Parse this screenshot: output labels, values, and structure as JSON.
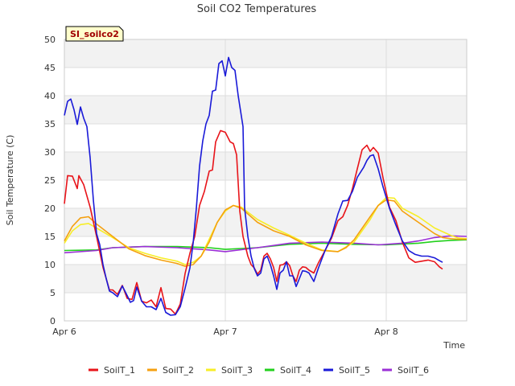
{
  "chart_data": {
    "type": "line",
    "title": "Soil CO2 Temperatures",
    "site_tag": "SI_soilco2",
    "xlabel": "Time",
    "ylabel": "Soil Temperature (C)",
    "x_unit": "days since Apr 6 00:00",
    "xlim": [
      0,
      2.5
    ],
    "ylim": [
      0,
      50
    ],
    "y_ticks": [
      0,
      5,
      10,
      15,
      20,
      25,
      30,
      35,
      40,
      45,
      50
    ],
    "x_ticks": [
      {
        "value": 0,
        "label": "Apr 6"
      },
      {
        "value": 1,
        "label": "Apr 7"
      },
      {
        "value": 2,
        "label": "Apr 8"
      }
    ],
    "grid": true,
    "legend": "bottom",
    "colors": {
      "SoilT_1": "#e8141a",
      "SoilT_2": "#f5a00f",
      "SoilT_3": "#f7ee27",
      "SoilT_4": "#22d01c",
      "SoilT_5": "#1a1ad8",
      "SoilT_6": "#9b2fd6"
    },
    "series": [
      {
        "name": "SoilT_1",
        "points": [
          [
            0,
            20.8
          ],
          [
            0.02,
            25.8
          ],
          [
            0.05,
            25.7
          ],
          [
            0.08,
            23.5
          ],
          [
            0.09,
            25.8
          ],
          [
            0.12,
            24.2
          ],
          [
            0.16,
            20.2
          ],
          [
            0.2,
            15
          ],
          [
            0.24,
            9.5
          ],
          [
            0.28,
            5.5
          ],
          [
            0.3,
            5.5
          ],
          [
            0.33,
            4.7
          ],
          [
            0.36,
            6.3
          ],
          [
            0.39,
            4
          ],
          [
            0.42,
            3.8
          ],
          [
            0.45,
            6.8
          ],
          [
            0.48,
            3.5
          ],
          [
            0.51,
            3.2
          ],
          [
            0.54,
            3.7
          ],
          [
            0.57,
            2.5
          ],
          [
            0.6,
            5.9
          ],
          [
            0.63,
            2.2
          ],
          [
            0.66,
            2.1
          ],
          [
            0.69,
            1.2
          ],
          [
            0.72,
            3
          ],
          [
            0.75,
            8.4
          ],
          [
            0.78,
            12
          ],
          [
            0.81,
            15
          ],
          [
            0.84,
            20.5
          ],
          [
            0.87,
            23
          ],
          [
            0.9,
            26.6
          ],
          [
            0.92,
            26.8
          ],
          [
            0.94,
            31.8
          ],
          [
            0.97,
            33.8
          ],
          [
            1.0,
            33.5
          ],
          [
            1.03,
            31.8
          ],
          [
            1.05,
            31.5
          ],
          [
            1.07,
            29.5
          ],
          [
            1.09,
            19.5
          ],
          [
            1.11,
            15
          ],
          [
            1.14,
            11.5
          ],
          [
            1.16,
            10
          ],
          [
            1.18,
            9.4
          ],
          [
            1.2,
            8.3
          ],
          [
            1.22,
            9
          ],
          [
            1.24,
            11.5
          ],
          [
            1.26,
            12
          ],
          [
            1.28,
            11
          ],
          [
            1.3,
            9.5
          ],
          [
            1.32,
            7
          ],
          [
            1.34,
            9.9
          ],
          [
            1.36,
            10
          ],
          [
            1.38,
            10.5
          ],
          [
            1.4,
            9.8
          ],
          [
            1.42,
            8
          ],
          [
            1.44,
            7
          ],
          [
            1.46,
            9
          ],
          [
            1.48,
            9.6
          ],
          [
            1.5,
            9.5
          ],
          [
            1.52,
            9
          ],
          [
            1.55,
            8.5
          ],
          [
            1.58,
            10.4
          ],
          [
            1.62,
            12.5
          ],
          [
            1.66,
            14.7
          ],
          [
            1.7,
            17.8
          ],
          [
            1.73,
            18.5
          ],
          [
            1.76,
            20.5
          ],
          [
            1.79,
            23.5
          ],
          [
            1.82,
            27
          ],
          [
            1.85,
            30.4
          ],
          [
            1.88,
            31.2
          ],
          [
            1.9,
            30.1
          ],
          [
            1.92,
            30.8
          ],
          [
            1.95,
            29.8
          ],
          [
            1.98,
            25.4
          ],
          [
            2.02,
            20.2
          ],
          [
            2.06,
            17.8
          ],
          [
            2.1,
            14
          ],
          [
            2.14,
            11.2
          ],
          [
            2.18,
            10.4
          ],
          [
            2.22,
            10.6
          ],
          [
            2.26,
            10.8
          ],
          [
            2.3,
            10.5
          ],
          [
            2.33,
            9.6
          ],
          [
            2.35,
            9.2
          ]
        ]
      },
      {
        "name": "SoilT_2",
        "points": [
          [
            0,
            14.2
          ],
          [
            0.05,
            16.8
          ],
          [
            0.1,
            18.3
          ],
          [
            0.15,
            18.5
          ],
          [
            0.2,
            17.2
          ],
          [
            0.3,
            15
          ],
          [
            0.4,
            12.8
          ],
          [
            0.5,
            11.6
          ],
          [
            0.6,
            10.8
          ],
          [
            0.7,
            10.2
          ],
          [
            0.75,
            9.7
          ],
          [
            0.8,
            10
          ],
          [
            0.85,
            11.5
          ],
          [
            0.9,
            14
          ],
          [
            0.95,
            17.5
          ],
          [
            1.0,
            19.7
          ],
          [
            1.05,
            20.5
          ],
          [
            1.1,
            20
          ],
          [
            1.2,
            17.5
          ],
          [
            1.3,
            16
          ],
          [
            1.4,
            15
          ],
          [
            1.5,
            13.5
          ],
          [
            1.6,
            12.5
          ],
          [
            1.7,
            12.3
          ],
          [
            1.75,
            13
          ],
          [
            1.8,
            14.4
          ],
          [
            1.9,
            18.5
          ],
          [
            1.95,
            20.5
          ],
          [
            2.0,
            21.5
          ],
          [
            2.05,
            21.3
          ],
          [
            2.1,
            19.5
          ],
          [
            2.2,
            17.5
          ],
          [
            2.3,
            15.5
          ],
          [
            2.35,
            14.8
          ],
          [
            2.4,
            14.6
          ],
          [
            2.45,
            14.5
          ],
          [
            2.5,
            14.5
          ]
        ]
      },
      {
        "name": "SoilT_3",
        "points": [
          [
            0,
            13.8
          ],
          [
            0.05,
            16
          ],
          [
            0.1,
            17.1
          ],
          [
            0.15,
            17.3
          ],
          [
            0.2,
            16.5
          ],
          [
            0.3,
            14.8
          ],
          [
            0.4,
            13
          ],
          [
            0.5,
            12
          ],
          [
            0.6,
            11.2
          ],
          [
            0.7,
            10.6
          ],
          [
            0.75,
            10
          ],
          [
            0.8,
            10.4
          ],
          [
            0.85,
            11.5
          ],
          [
            0.9,
            14.5
          ],
          [
            0.95,
            17.5
          ],
          [
            1.0,
            19.5
          ],
          [
            1.05,
            20.5
          ],
          [
            1.1,
            20.2
          ],
          [
            1.2,
            18
          ],
          [
            1.3,
            16.5
          ],
          [
            1.4,
            15.2
          ],
          [
            1.5,
            13.8
          ],
          [
            1.6,
            12.6
          ],
          [
            1.7,
            12.3
          ],
          [
            1.8,
            14
          ],
          [
            1.9,
            18
          ],
          [
            1.95,
            20.5
          ],
          [
            2.0,
            21.9
          ],
          [
            2.05,
            21.8
          ],
          [
            2.1,
            20
          ],
          [
            2.2,
            18.5
          ],
          [
            2.3,
            16.5
          ],
          [
            2.4,
            15.2
          ],
          [
            2.45,
            14.7
          ],
          [
            2.5,
            14.6
          ]
        ]
      },
      {
        "name": "SoilT_4",
        "points": [
          [
            0,
            12.5
          ],
          [
            0.2,
            12.6
          ],
          [
            0.3,
            13
          ],
          [
            0.5,
            13.2
          ],
          [
            0.7,
            13.2
          ],
          [
            0.9,
            13
          ],
          [
            1.0,
            12.7
          ],
          [
            1.2,
            13
          ],
          [
            1.4,
            13.6
          ],
          [
            1.6,
            13.8
          ],
          [
            1.8,
            13.6
          ],
          [
            2.0,
            13.5
          ],
          [
            2.2,
            13.8
          ],
          [
            2.3,
            14.1
          ],
          [
            2.4,
            14.3
          ],
          [
            2.5,
            14.4
          ]
        ]
      },
      {
        "name": "SoilT_5",
        "points": [
          [
            0,
            36.5
          ],
          [
            0.02,
            39
          ],
          [
            0.04,
            39.4
          ],
          [
            0.06,
            37.5
          ],
          [
            0.08,
            34.9
          ],
          [
            0.1,
            38
          ],
          [
            0.12,
            36
          ],
          [
            0.14,
            34.5
          ],
          [
            0.16,
            29
          ],
          [
            0.18,
            21.5
          ],
          [
            0.2,
            15.5
          ],
          [
            0.22,
            13.5
          ],
          [
            0.24,
            10
          ],
          [
            0.26,
            7.5
          ],
          [
            0.28,
            5.3
          ],
          [
            0.3,
            5
          ],
          [
            0.33,
            4.3
          ],
          [
            0.36,
            6.2
          ],
          [
            0.39,
            4.5
          ],
          [
            0.41,
            3.3
          ],
          [
            0.43,
            3.6
          ],
          [
            0.45,
            6
          ],
          [
            0.48,
            3.5
          ],
          [
            0.51,
            2.5
          ],
          [
            0.54,
            2.5
          ],
          [
            0.57,
            2
          ],
          [
            0.6,
            4
          ],
          [
            0.63,
            1.5
          ],
          [
            0.66,
            1
          ],
          [
            0.69,
            1.1
          ],
          [
            0.72,
            2.5
          ],
          [
            0.75,
            5.8
          ],
          [
            0.78,
            9.4
          ],
          [
            0.8,
            13.8
          ],
          [
            0.82,
            20
          ],
          [
            0.84,
            27.5
          ],
          [
            0.86,
            32
          ],
          [
            0.88,
            35
          ],
          [
            0.9,
            36.5
          ],
          [
            0.92,
            40.8
          ],
          [
            0.94,
            41
          ],
          [
            0.96,
            45.7
          ],
          [
            0.98,
            46.2
          ],
          [
            1.0,
            43.5
          ],
          [
            1.02,
            46.8
          ],
          [
            1.04,
            45
          ],
          [
            1.06,
            44.5
          ],
          [
            1.08,
            40
          ],
          [
            1.11,
            34.5
          ],
          [
            1.12,
            20
          ],
          [
            1.14,
            15
          ],
          [
            1.16,
            11.5
          ],
          [
            1.18,
            9.3
          ],
          [
            1.2,
            8
          ],
          [
            1.22,
            8.5
          ],
          [
            1.24,
            11
          ],
          [
            1.26,
            11.5
          ],
          [
            1.28,
            10
          ],
          [
            1.3,
            8
          ],
          [
            1.32,
            5.6
          ],
          [
            1.34,
            8.5
          ],
          [
            1.36,
            9
          ],
          [
            1.38,
            10.5
          ],
          [
            1.4,
            8
          ],
          [
            1.42,
            8
          ],
          [
            1.44,
            6.1
          ],
          [
            1.46,
            7.5
          ],
          [
            1.48,
            8.9
          ],
          [
            1.5,
            8.8
          ],
          [
            1.52,
            8.5
          ],
          [
            1.55,
            7
          ],
          [
            1.58,
            9.5
          ],
          [
            1.62,
            12.5
          ],
          [
            1.66,
            15
          ],
          [
            1.7,
            19
          ],
          [
            1.73,
            21.3
          ],
          [
            1.76,
            21.4
          ],
          [
            1.79,
            23
          ],
          [
            1.82,
            25.5
          ],
          [
            1.86,
            27.3
          ],
          [
            1.88,
            28.5
          ],
          [
            1.9,
            29.3
          ],
          [
            1.92,
            29.5
          ],
          [
            1.95,
            27
          ],
          [
            1.98,
            23.8
          ],
          [
            2.02,
            20
          ],
          [
            2.06,
            17
          ],
          [
            2.1,
            14.2
          ],
          [
            2.14,
            12.5
          ],
          [
            2.18,
            11.8
          ],
          [
            2.22,
            11.5
          ],
          [
            2.26,
            11.5
          ],
          [
            2.3,
            11.2
          ],
          [
            2.33,
            10.7
          ],
          [
            2.35,
            10.4
          ]
        ]
      },
      {
        "name": "SoilT_6",
        "points": [
          [
            0,
            12.1
          ],
          [
            0.2,
            12.5
          ],
          [
            0.3,
            13
          ],
          [
            0.5,
            13.2
          ],
          [
            0.7,
            13
          ],
          [
            0.9,
            12.6
          ],
          [
            1.0,
            12.3
          ],
          [
            1.2,
            13
          ],
          [
            1.4,
            13.8
          ],
          [
            1.6,
            14
          ],
          [
            1.8,
            13.8
          ],
          [
            1.95,
            13.5
          ],
          [
            2.1,
            13.8
          ],
          [
            2.2,
            14.2
          ],
          [
            2.3,
            14.8
          ],
          [
            2.4,
            15.1
          ],
          [
            2.5,
            15
          ]
        ]
      }
    ]
  }
}
